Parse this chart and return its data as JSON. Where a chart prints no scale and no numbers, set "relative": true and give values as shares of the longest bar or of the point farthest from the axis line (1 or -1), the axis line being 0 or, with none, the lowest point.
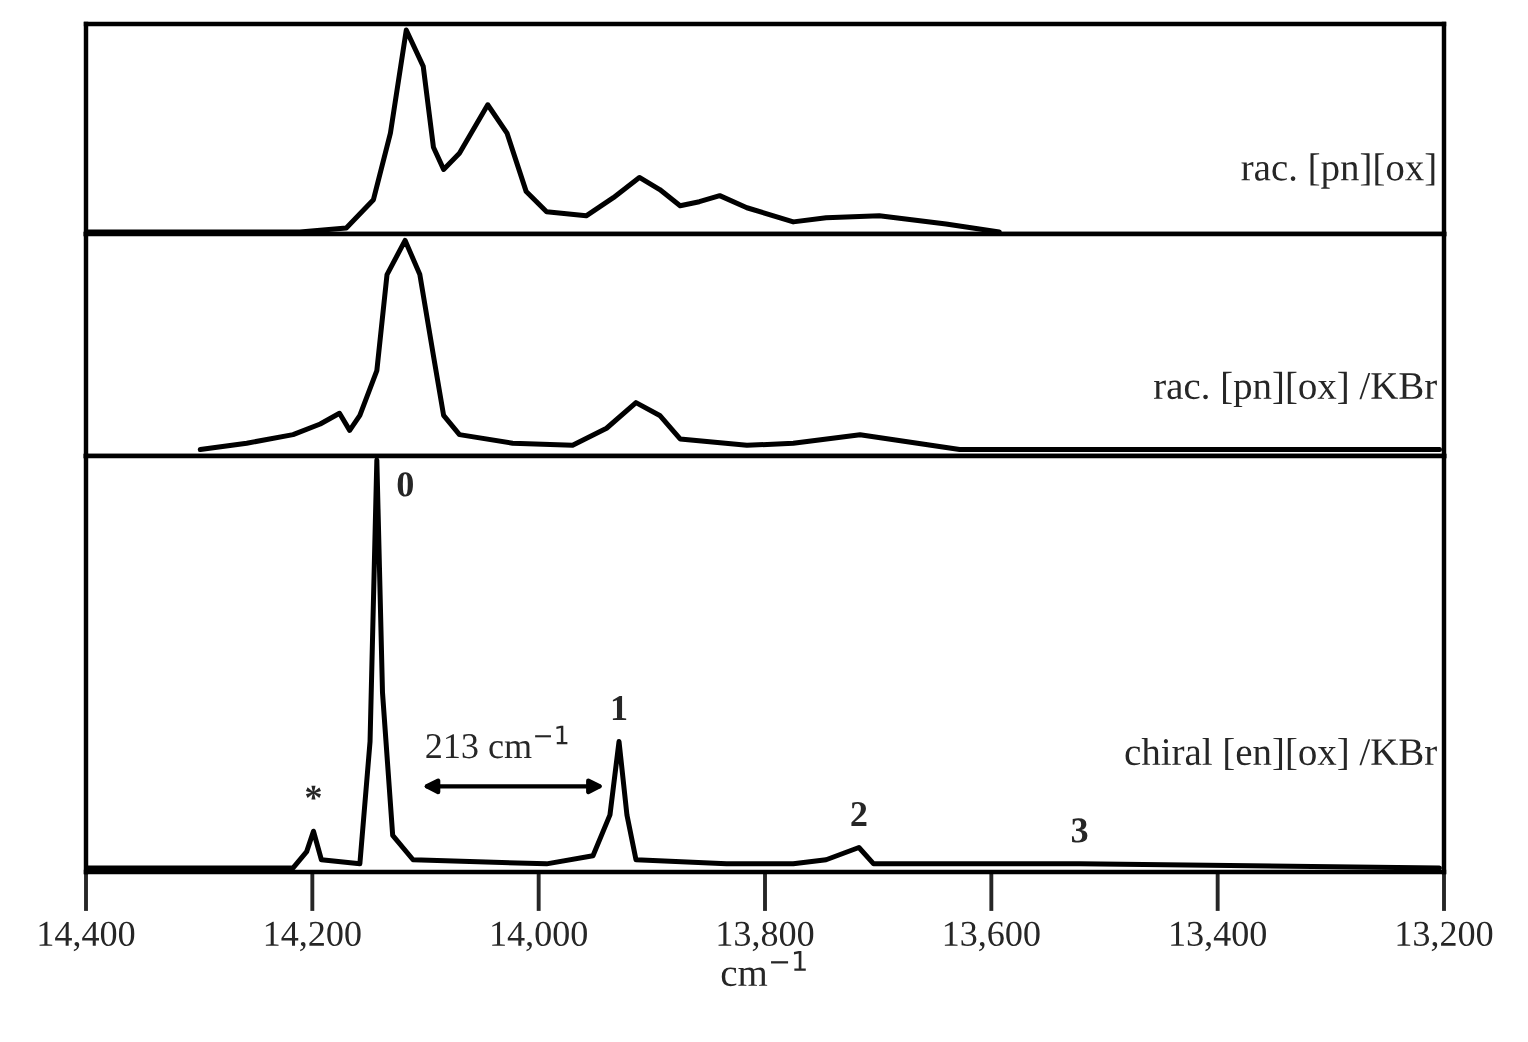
{
  "chart_data": [
    {
      "type": "line",
      "relative": true,
      "xlim": [
        14400,
        13200
      ],
      "tick_labels": false,
      "series": [
        {
          "name": "rac. [pn][ox]",
          "color": "#000000",
          "x": [
            14400,
            14211,
            14170,
            14146,
            14131,
            14117,
            14102,
            14093,
            14084,
            14070,
            14045,
            14028,
            14011,
            13993,
            13958,
            13934,
            13911,
            13893,
            13875,
            13858,
            13840,
            13816,
            13775,
            13746,
            13699,
            13640,
            13593
          ],
          "values": [
            0,
            0,
            0.02,
            0.16,
            0.49,
            1.0,
            0.82,
            0.42,
            0.31,
            0.39,
            0.63,
            0.49,
            0.2,
            0.1,
            0.08,
            0.17,
            0.27,
            0.21,
            0.13,
            0.15,
            0.18,
            0.12,
            0.05,
            0.07,
            0.08,
            0.04,
            0
          ]
        }
      ]
    },
    {
      "type": "line",
      "relative": true,
      "xlim": [
        14400,
        13200
      ],
      "tick_labels": false,
      "series": [
        {
          "name": "rac. [pn][ox] /KBr",
          "color": "#000000",
          "x": [
            14299,
            14258,
            14217,
            14193,
            14176,
            14167,
            14158,
            14143,
            14134,
            14118,
            14105,
            14093,
            14084,
            14070,
            14023,
            13970,
            13940,
            13914,
            13893,
            13875,
            13816,
            13775,
            13716,
            13628,
            13204
          ],
          "values": [
            0.02,
            0.05,
            0.09,
            0.14,
            0.19,
            0.11,
            0.18,
            0.39,
            0.84,
            1.0,
            0.84,
            0.46,
            0.18,
            0.09,
            0.05,
            0.04,
            0.12,
            0.24,
            0.18,
            0.07,
            0.04,
            0.05,
            0.09,
            0.02,
            0.02
          ]
        }
      ]
    },
    {
      "type": "line",
      "relative": true,
      "xlim": [
        14400,
        13200
      ],
      "tick_labels": "x",
      "xlabel": "cm$^{−1}$",
      "xticks": [
        {
          "value": 14400,
          "label": "14,400"
        },
        {
          "value": 14200,
          "label": "14,200"
        },
        {
          "value": 14000,
          "label": "14,000"
        },
        {
          "value": 13800,
          "label": "13,800"
        },
        {
          "value": 13600,
          "label": "13,600"
        },
        {
          "value": 13400,
          "label": "13,400"
        },
        {
          "value": 13200,
          "label": "13,200"
        }
      ],
      "series": [
        {
          "name": "chiral [en][ox] /KBr",
          "color": "#000000",
          "x": [
            14400,
            14217,
            14205,
            14199,
            14192,
            14158,
            14149,
            14143,
            14138,
            14129,
            14111,
            13993,
            13952,
            13937,
            13929,
            13922,
            13914,
            13834,
            13775,
            13746,
            13717,
            13704,
            13522,
            13204
          ],
          "values": [
            0,
            0,
            0.04,
            0.09,
            0.02,
            0.01,
            0.31,
            1.0,
            0.43,
            0.08,
            0.02,
            0.01,
            0.03,
            0.13,
            0.31,
            0.13,
            0.02,
            0.01,
            0.01,
            0.02,
            0.05,
            0.01,
            0.01,
            0
          ]
        }
      ],
      "annotations": [
        {
          "text": "*",
          "x": 14199,
          "y": 0.09
        },
        {
          "text": "0",
          "x": 14143,
          "y": 1.0
        },
        "213 cm$^{−1}$",
        {
          "text": "1",
          "x": 13929,
          "y": 0.31
        },
        {
          "text": "2",
          "x": 13717,
          "y": 0.05
        },
        {
          "text": "3",
          "x": 13522,
          "y": 0.01
        }
      ]
    }
  ]
}
